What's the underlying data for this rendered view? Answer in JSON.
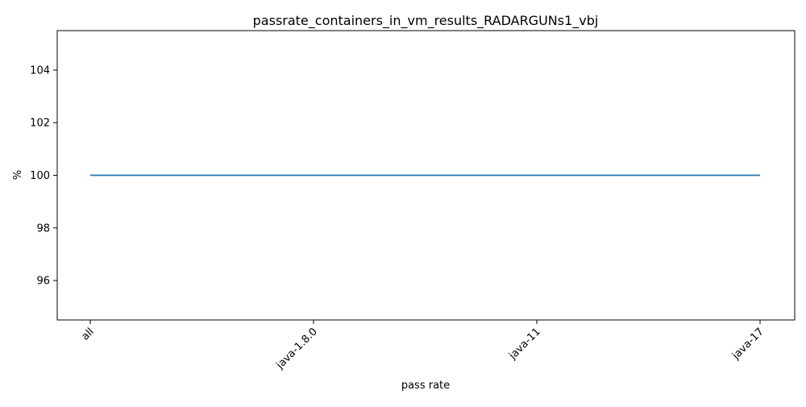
{
  "chart_data": {
    "type": "line",
    "title": "passrate_containers_in_vm_results_RADARGUNs1_vbj",
    "xlabel": "pass rate",
    "ylabel": "%",
    "categories": [
      "all",
      "java-1.8.0",
      "java-11",
      "java-17"
    ],
    "series": [
      {
        "values": [
          100,
          100,
          100,
          100
        ],
        "color": "#1f77b4"
      }
    ],
    "ylim": [
      94.5,
      105.5
    ],
    "yticks": [
      96,
      98,
      100,
      102,
      104
    ],
    "grid": false,
    "legend": "none"
  }
}
